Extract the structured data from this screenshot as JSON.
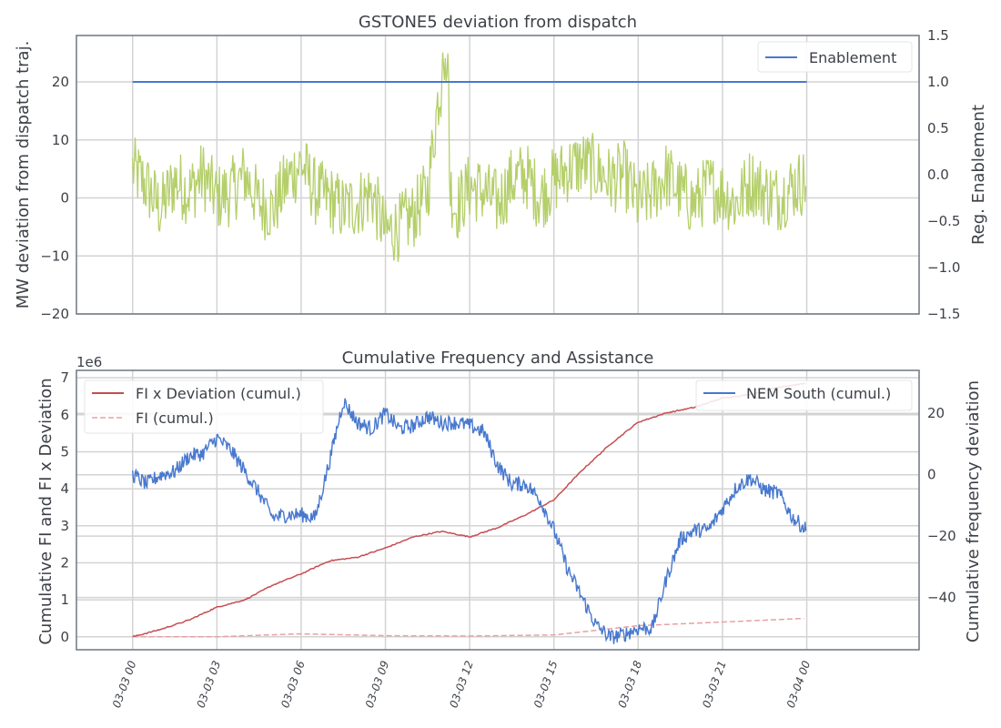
{
  "chart_data": [
    {
      "type": "line",
      "title": "GSTONE5 deviation from dispatch",
      "xlabel": "",
      "ylabel": "MW deviation from dispatch traj.",
      "ylim": [
        -20,
        28
      ],
      "yticks": [
        -20,
        -10,
        0,
        10,
        20
      ],
      "y2label": "Reg. Enablement",
      "y2lim": [
        -1.5,
        1.5
      ],
      "y2ticks": [
        "−1.5",
        "−1.0",
        "−0.5",
        "0.0",
        "0.5",
        "1.0",
        "1.5"
      ],
      "yticks_labels": [
        "−20",
        "−10",
        "0",
        "10",
        "20"
      ],
      "xlim_hours": [
        -2,
        28
      ],
      "legend": {
        "position": "top-right",
        "entries": [
          {
            "name": "Enablement",
            "color": "#4878cf"
          }
        ]
      },
      "series": [
        {
          "name": "Enablement",
          "axis": "right",
          "color": "#4878cf",
          "x_hours": [
            0,
            24
          ],
          "values": [
            1.0,
            1.0
          ]
        },
        {
          "axis": "left",
          "color": "#b5cf6b",
          "x_hours": [
            0,
            0.5,
            1,
            1.5,
            2,
            2.5,
            3,
            3.5,
            4,
            4.5,
            5,
            5.5,
            6,
            6.5,
            7,
            7.5,
            8,
            8.5,
            9,
            9.5,
            10,
            10.5,
            10.9,
            11.1,
            11.3,
            11.5,
            12,
            12.5,
            13,
            13.5,
            14,
            14.5,
            15,
            15.5,
            16,
            16.5,
            17,
            17.5,
            18,
            18.5,
            19,
            19.5,
            20,
            20.5,
            21,
            21.5,
            22,
            22.5,
            23,
            23.5,
            24
          ],
          "values": [
            5,
            2,
            -2,
            3,
            1,
            4,
            0,
            1,
            4,
            -1,
            -2,
            3,
            6,
            1,
            0,
            -2,
            -1,
            1,
            -6,
            -5,
            -3,
            1,
            18,
            20,
            2,
            -2,
            2,
            1,
            -1,
            3,
            4,
            0,
            3,
            5,
            6,
            5,
            3,
            4,
            -1,
            1,
            4,
            1,
            -1,
            2,
            1,
            -1,
            3,
            1,
            0,
            2,
            3
          ],
          "noise_amplitude": 6
        }
      ],
      "grid": true
    },
    {
      "type": "line",
      "title": "Cumulative Frequency and Assistance",
      "xlabel": "",
      "ylabel": "Cumulative FI and FI x Deviation",
      "y_scale_label": "1e6",
      "ylim": [
        -0.35,
        7.2
      ],
      "yticks": [
        "0",
        "1",
        "2",
        "3",
        "4",
        "5",
        "6",
        "7"
      ],
      "y2label": "Cumulative frequency deviation",
      "y2lim": [
        -57,
        34
      ],
      "y2ticks": [
        "−40",
        "−20",
        "0",
        "20"
      ],
      "y2tick_values": [
        -40,
        -20,
        0,
        20
      ],
      "xlim_hours": [
        -2,
        28
      ],
      "xticks": [
        "03-03 00",
        "03-03 03",
        "03-03 06",
        "03-03 09",
        "03-03 12",
        "03-03 15",
        "03-03 18",
        "03-03 21",
        "03-04 00"
      ],
      "legend_left": {
        "position": "top-left",
        "entries": [
          {
            "name": "FI x Deviation (cumul.)",
            "color": "#c44e52",
            "style": "solid"
          },
          {
            "name": "FI (cumul.)",
            "color": "#e8a0a2",
            "style": "dashed"
          }
        ]
      },
      "legend_right": {
        "position": "top-right",
        "entries": [
          {
            "name": "NEM South (cumul.)",
            "color": "#4878cf",
            "style": "solid"
          }
        ]
      },
      "series": [
        {
          "name": "FI x Deviation (cumul.)",
          "axis": "left",
          "color": "#c44e52",
          "x_hours": [
            0,
            1,
            2,
            3,
            4,
            5,
            6,
            7,
            8,
            9,
            10,
            11,
            12,
            13,
            14,
            15,
            16,
            17,
            18,
            19,
            20,
            21,
            22,
            23,
            24
          ],
          "values": [
            0,
            0.2,
            0.45,
            0.8,
            1.0,
            1.4,
            1.7,
            2.05,
            2.15,
            2.4,
            2.7,
            2.85,
            2.7,
            2.95,
            3.3,
            3.7,
            4.5,
            5.2,
            5.8,
            6.05,
            6.2,
            6.45,
            6.55,
            6.75,
            6.85
          ]
        },
        {
          "name": "FI (cumul.)",
          "axis": "left",
          "color": "#e8a0a2",
          "x_hours": [
            0,
            3,
            6,
            9,
            12,
            15,
            18,
            21,
            24
          ],
          "values": [
            0,
            0,
            0.08,
            0.03,
            0.02,
            0.05,
            0.3,
            0.4,
            0.5
          ]
        },
        {
          "name": "NEM South (cumul.)",
          "axis": "right",
          "color": "#4878cf",
          "x_hours": [
            0,
            0.5,
            1,
            1.5,
            2,
            2.5,
            3,
            3.5,
            4,
            4.5,
            5,
            5.5,
            6,
            6.5,
            7,
            7.5,
            8,
            8.5,
            9,
            9.5,
            10,
            10.5,
            11,
            11.5,
            12,
            12.5,
            13,
            13.5,
            14,
            14.5,
            15,
            15.5,
            16,
            16.5,
            17,
            17.5,
            18,
            18.5,
            19,
            19.5,
            20,
            20.5,
            21,
            21.5,
            22,
            22.5,
            23,
            23.5,
            24
          ],
          "values": [
            0,
            -3,
            0,
            1,
            6,
            7,
            12,
            8,
            1,
            -6,
            -14,
            -13,
            -13,
            -14,
            4,
            24,
            17,
            15,
            20,
            15,
            16,
            19,
            17,
            17,
            16,
            14,
            3,
            -3,
            -3,
            -8,
            -18,
            -31,
            -40,
            -49,
            -53,
            -52,
            -50,
            -50,
            -34,
            -21,
            -18,
            -18,
            -11,
            -4,
            -1,
            -5,
            -6,
            -14,
            -18
          ],
          "noise_amplitude": 2.5
        }
      ],
      "grid": true
    }
  ]
}
